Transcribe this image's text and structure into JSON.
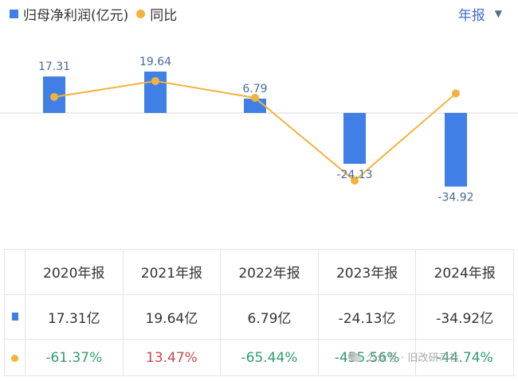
{
  "legend": {
    "bar_label": "归母净利润(亿元)",
    "line_label": "同比"
  },
  "period_selector": {
    "label": "年报"
  },
  "colors": {
    "bar": "#3f7fe6",
    "line": "#f2b33d",
    "positive": "#c84a4a",
    "negative": "#2f9e6d",
    "selector": "#3f6fd1"
  },
  "chart_data": {
    "type": "bar",
    "categories": [
      "2020年报",
      "2021年报",
      "2022年报",
      "2023年报",
      "2024年报"
    ],
    "series": [
      {
        "name": "归母净利润(亿元)",
        "type": "bar",
        "values": [
          17.31,
          19.64,
          6.79,
          -24.13,
          -34.92
        ],
        "labels": [
          "17.31",
          "19.64",
          "6.79",
          "-24.13",
          "-34.92"
        ]
      },
      {
        "name": "同比",
        "type": "line",
        "values": [
          -61.37,
          13.47,
          -65.44,
          -455.56,
          -44.74
        ]
      }
    ]
  },
  "table": {
    "headers": [
      "2020年报",
      "2021年报",
      "2022年报",
      "2023年报",
      "2024年报"
    ],
    "profit_row": [
      "17.31亿",
      "19.64亿",
      "6.79亿",
      "-24.13亿",
      "-34.92亿"
    ],
    "yoy_row": [
      "-61.37%",
      "13.47%",
      "-65.44%",
      "-455.56%",
      "-44.74%"
    ]
  },
  "watermark": {
    "text": "公众号 · 旧改研习社"
  }
}
